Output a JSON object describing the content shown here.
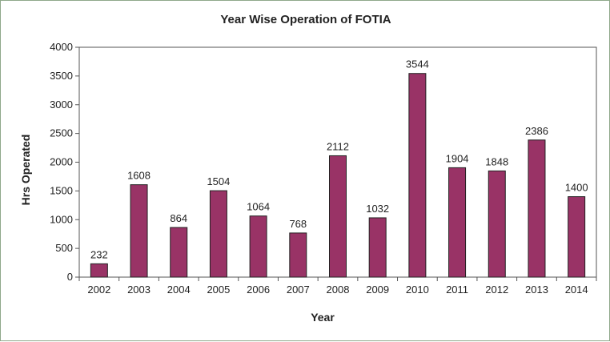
{
  "chart_data": {
    "type": "bar",
    "title": "Year Wise Operation of FOTIA",
    "xlabel": "Year",
    "ylabel": "Hrs Operated",
    "categories": [
      "2002",
      "2003",
      "2004",
      "2005",
      "2006",
      "2007",
      "2008",
      "2009",
      "2010",
      "2011",
      "2012",
      "2013",
      "2014"
    ],
    "values": [
      232,
      1608,
      864,
      1504,
      1064,
      768,
      2112,
      1032,
      3544,
      1904,
      1848,
      2386,
      1400
    ],
    "data_labels": [
      "232",
      "1608",
      "864",
      "1504",
      "1064",
      "768",
      "2112",
      "1032",
      "3544",
      "1904",
      "1848",
      "2386",
      "1400"
    ],
    "ylim": [
      0,
      4000
    ],
    "yticks": [
      "0",
      "500",
      "1000",
      "1500",
      "2000",
      "2500",
      "3000",
      "3500",
      "4000"
    ],
    "grid": false,
    "legend": "none",
    "bar_color": "#993366"
  }
}
